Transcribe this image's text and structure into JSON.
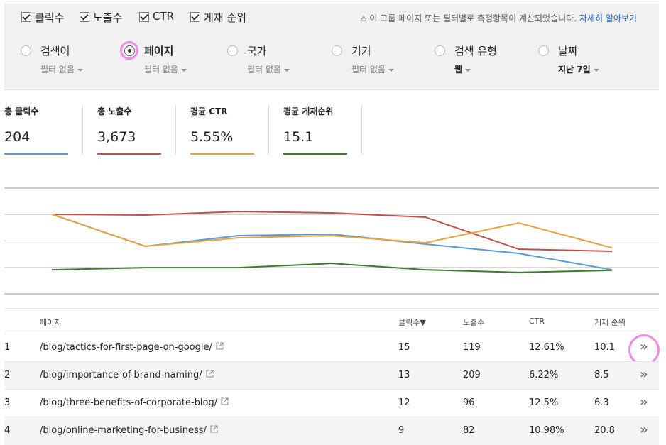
{
  "toolbar": {
    "metrics": [
      {
        "label": "클릭수",
        "checked": true
      },
      {
        "label": "노출수",
        "checked": true
      },
      {
        "label": "CTR",
        "checked": true
      },
      {
        "label": "게재 순위",
        "checked": true
      }
    ],
    "notice": "이 그룹 페이지 또는 필터별로 측정항목이 계산되었습니다.",
    "link": "자세히 알아보기"
  },
  "filters": [
    {
      "label": "검색어",
      "value": "필터 없음",
      "selected": false,
      "active": false
    },
    {
      "label": "페이지",
      "value": "필터 없음",
      "selected": true,
      "active": false
    },
    {
      "label": "국가",
      "value": "필터 없음",
      "selected": false,
      "active": false
    },
    {
      "label": "기기",
      "value": "필터 없음",
      "selected": false,
      "active": false
    },
    {
      "label": "검색 유형",
      "value": "웹",
      "selected": false,
      "active": true
    },
    {
      "label": "날짜",
      "value": "지난 7일",
      "selected": false,
      "active": true
    }
  ],
  "summary": [
    {
      "label": "총 클릭수",
      "value": "204",
      "color": "#5b9bd5"
    },
    {
      "label": "총 노출수",
      "value": "3,673",
      "color": "#c0504d"
    },
    {
      "label": "평균 CTR",
      "value": "5.55%",
      "color": "#e6a23c"
    },
    {
      "label": "평균 게재순위",
      "value": "15.1",
      "color": "#3a7d2c"
    }
  ],
  "chart_data": {
    "type": "line",
    "categories": [
      null,
      null,
      null,
      null,
      null,
      null,
      null
    ],
    "ylim": [
      0,
      4
    ],
    "yticks": [
      0,
      1,
      2,
      3,
      4
    ],
    "grid": true,
    "series": [
      {
        "color": "#c0504d",
        "values": [
          3.01,
          2.98,
          3.11,
          3.06,
          2.9,
          1.69,
          1.61
        ]
      },
      {
        "color": "#5b9bd5",
        "values": [
          3.01,
          1.8,
          2.2,
          2.26,
          1.88,
          1.53,
          0.91
        ]
      },
      {
        "color": "#e6a23c",
        "values": [
          3.01,
          1.8,
          2.12,
          2.2,
          1.93,
          2.68,
          1.74
        ]
      },
      {
        "color": "#3a7d2c",
        "values": [
          0.91,
          0.99,
          0.99,
          1.15,
          0.91,
          0.81,
          0.89
        ]
      }
    ]
  },
  "table": {
    "headers": [
      "페이지",
      "클릭수▼",
      "노출수",
      "CTR",
      "게재 순위"
    ],
    "rows": [
      {
        "index": 1,
        "page": "/blog/tactics-for-first-page-on-google/",
        "clicks": 15,
        "impressions": 119,
        "ctr": "12.61%",
        "position": 10.1,
        "highlighted": true
      },
      {
        "index": 2,
        "page": "/blog/importance-of-brand-naming/",
        "clicks": 13,
        "impressions": 209,
        "ctr": "6.22%",
        "position": 8.5,
        "highlighted": false
      },
      {
        "index": 3,
        "page": "/blog/three-benefits-of-corporate-blog/",
        "clicks": 12,
        "impressions": 96,
        "ctr": "12.5%",
        "position": 6.3,
        "highlighted": false
      },
      {
        "index": 4,
        "page": "/blog/online-marketing-for-business/",
        "clicks": 9,
        "impressions": 82,
        "ctr": "10.98%",
        "position": 20.8,
        "highlighted": false
      }
    ]
  }
}
